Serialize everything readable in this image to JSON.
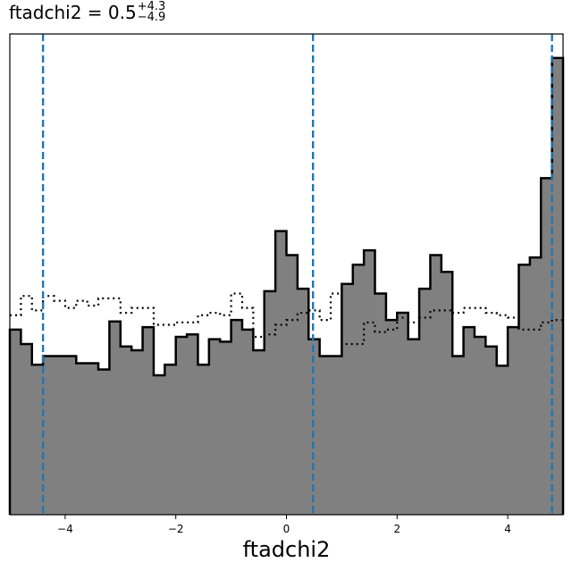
{
  "title": {
    "param": "ftadchi2",
    "median": "0.5",
    "upper": "+4.3",
    "lower": "−4.9"
  },
  "chart_data": {
    "type": "histogram",
    "xlabel": "ftadchi2",
    "xlim": [
      -5,
      5
    ],
    "ylim": [
      0,
      1
    ],
    "x_ticks": [
      -4,
      -2,
      0,
      2,
      4
    ],
    "x_tick_labels": [
      "−4",
      "−2",
      "0",
      "2",
      "4"
    ],
    "bin_edges": [
      -5,
      -4.8,
      -4.6,
      -4.4,
      -4.2,
      -4,
      -3.8,
      -3.6,
      -3.4,
      -3.2,
      -3,
      -2.8,
      -2.6,
      -2.4,
      -2.2,
      -2,
      -1.8,
      -1.6,
      -1.4,
      -1.2,
      -1,
      -0.8,
      -0.6,
      -0.4,
      -0.2,
      0,
      0.2,
      0.4,
      0.6,
      0.8,
      1,
      1.2,
      1.4,
      1.6,
      1.8,
      2,
      2.2,
      2.4,
      2.6,
      2.8,
      3,
      3.2,
      3.4,
      3.6,
      3.8,
      4,
      4.2,
      4.4,
      4.6,
      4.8,
      5
    ],
    "series": [
      {
        "style": "filled",
        "color": "#808080",
        "values": [
          0.385,
          0.355,
          0.312,
          0.33,
          0.33,
          0.33,
          0.315,
          0.315,
          0.302,
          0.402,
          0.35,
          0.342,
          0.39,
          0.29,
          0.312,
          0.37,
          0.375,
          0.312,
          0.365,
          0.36,
          0.405,
          0.385,
          0.342,
          0.465,
          0.59,
          0.54,
          0.47,
          0.365,
          0.33,
          0.33,
          0.48,
          0.52,
          0.55,
          0.46,
          0.405,
          0.42,
          0.365,
          0.47,
          0.54,
          0.505,
          0.33,
          0.39,
          0.37,
          0.35,
          0.31,
          0.39,
          0.52,
          0.535,
          0.7,
          0.95
        ]
      },
      {
        "style": "dotted",
        "color": "#000000",
        "values": [
          0.415,
          0.455,
          0.425,
          0.455,
          0.445,
          0.43,
          0.445,
          0.435,
          0.45,
          0.45,
          0.42,
          0.43,
          0.43,
          0.395,
          0.395,
          0.4,
          0.4,
          0.415,
          0.42,
          0.415,
          0.46,
          0.43,
          0.37,
          0.375,
          0.395,
          0.405,
          0.42,
          0.425,
          0.405,
          0.46,
          0.355,
          0.355,
          0.4,
          0.38,
          0.385,
          0.41,
          0.4,
          0.41,
          0.425,
          0.425,
          0.42,
          0.43,
          0.43,
          0.42,
          0.415,
          0.41,
          0.385,
          0.385,
          0.4,
          0.405
        ]
      }
    ],
    "vlines": {
      "color": "#1f77b4",
      "style": "dashed",
      "x": [
        -4.4,
        0.48,
        4.8
      ]
    },
    "grid": false,
    "legend": "none"
  }
}
